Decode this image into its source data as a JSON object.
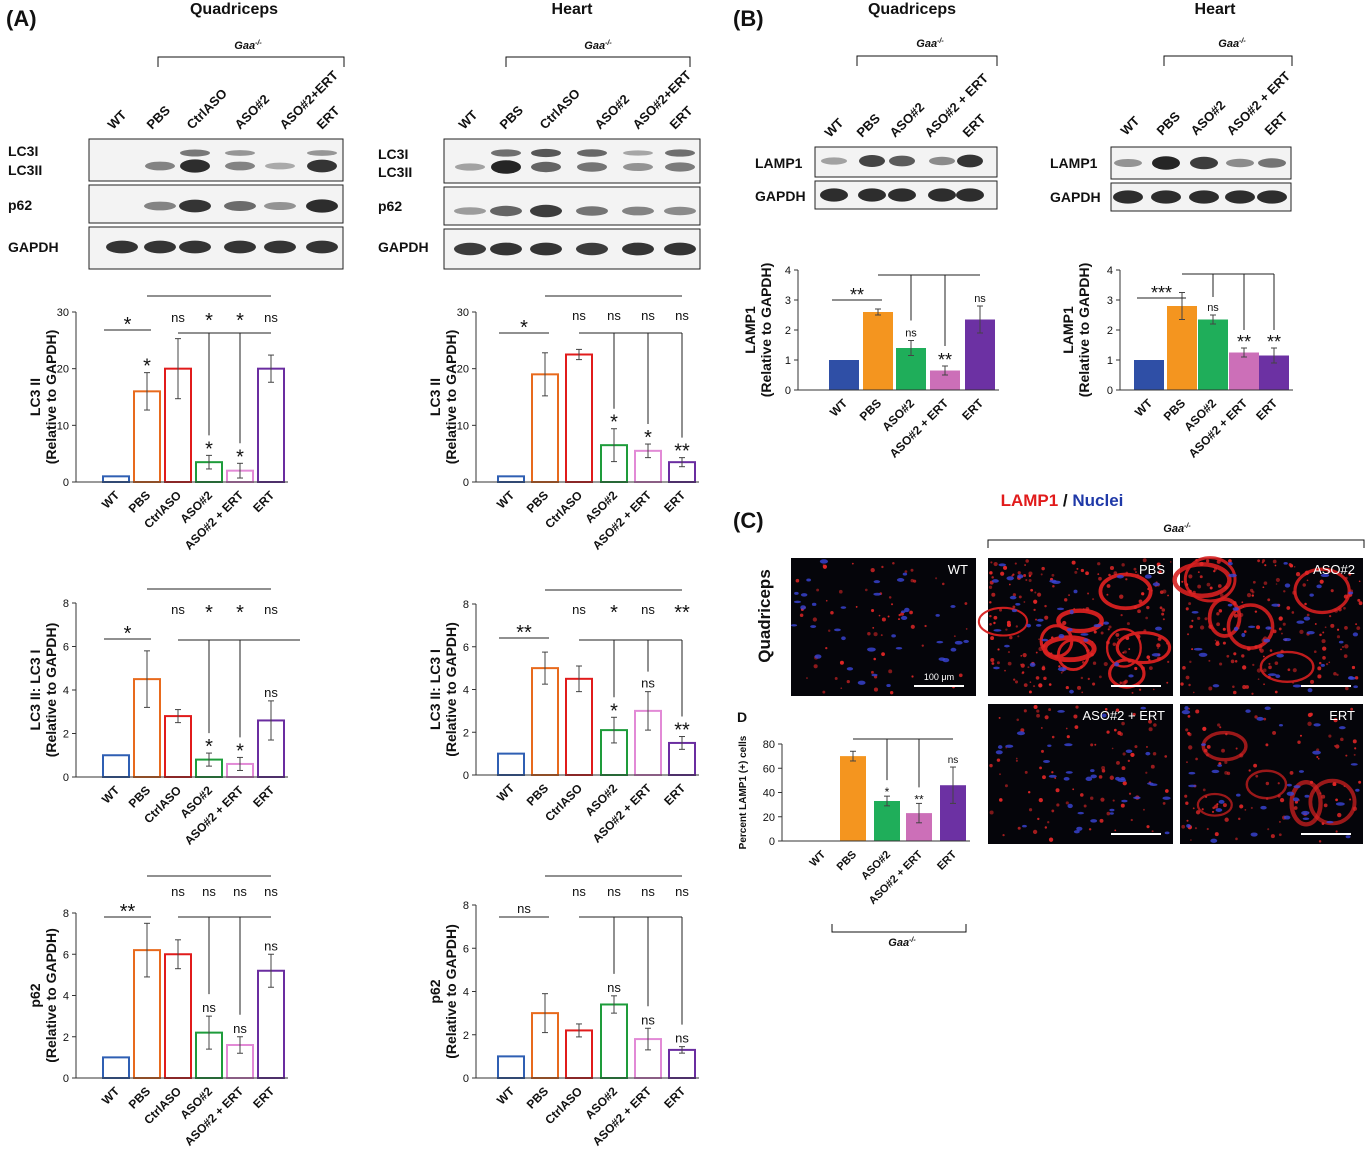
{
  "colors": {
    "wt": "#2f5fb3",
    "pbs": "#e86a1d",
    "ctrl": "#e11b1b",
    "aso": "#1e9c3b",
    "combo": "#e28ad6",
    "ert": "#6a2da0",
    "pbs_fill": "#f4951f",
    "aso_fill": "#1fae5a",
    "combo_fill": "#cc6fb8",
    "ert_fill": "#6c31a3",
    "wt_fill": "#2f4fa6",
    "lamp1_text": "#e11b1b",
    "nuclei_text": "#1f39a8"
  },
  "panels": {
    "A": "(A)",
    "B": "(B)",
    "C": "(C)",
    "D": "D",
    "quadriceps": "Quadriceps",
    "heart": "Heart",
    "gaa": "Gaa",
    "gaa_sup": "-/-",
    "lamp1": "LAMP1",
    "slash": " / ",
    "nuclei": "Nuclei"
  },
  "blots": {
    "a_lanes": [
      "WT",
      "PBS",
      "CtrlASO",
      "ASO#2",
      "ASO#2+ERT",
      "ERT"
    ],
    "b_quad_lanes": [
      "WT",
      "PBS",
      "ASO#2",
      "ASO#2 + ERT",
      "ERT"
    ],
    "b_heart_lanes": [
      "WT",
      "PBS",
      "ASO#2",
      "ASO#2 + ERT",
      "ERT"
    ],
    "labels": {
      "lc3i": "LC3I",
      "lc3ii": "LC3II",
      "p62": "p62",
      "gapdh": "GAPDH",
      "lamp1": "LAMP1"
    }
  },
  "micrographs": {
    "row_label": "Quadriceps",
    "panels": [
      "WT",
      "PBS",
      "ASO#2",
      "ASO#2 + ERT",
      "ERT"
    ],
    "scalebar": "100 μm"
  },
  "chart_data": [
    {
      "id": "a_quad_lc3",
      "type": "bar",
      "ylabel": "LC3 II",
      "ylabel2": "(Relative to GAPDH)",
      "ylim": [
        0,
        30
      ],
      "ticks": [
        0,
        10,
        20,
        30
      ],
      "categories": [
        "WT",
        "PBS",
        "CtrlASO",
        "ASO#2",
        "ASO#2 + ERT",
        "ERT"
      ],
      "values": [
        1,
        16,
        20,
        3.5,
        2,
        20
      ],
      "errors": [
        0,
        3.3,
        5.3,
        1.2,
        1.3,
        2.4
      ],
      "annotations": [
        "",
        "*",
        "",
        "*",
        "*",
        ""
      ],
      "top_labels": [
        "",
        "",
        "ns",
        "*",
        "*",
        "ns"
      ],
      "wt_pbs_label": "*"
    },
    {
      "id": "a_heart_lc3",
      "type": "bar",
      "ylabel": "LC3 II",
      "ylabel2": "(Relative to GAPDH)",
      "ylim": [
        0,
        30
      ],
      "ticks": [
        0,
        10,
        20,
        30
      ],
      "categories": [
        "WT",
        "PBS",
        "CtrlASO",
        "ASO#2",
        "ASO#2 + ERT",
        "ERT"
      ],
      "values": [
        1,
        19,
        22.5,
        6.5,
        5.5,
        3.5
      ],
      "errors": [
        0,
        3.8,
        0.9,
        2.9,
        1.2,
        0.8
      ],
      "annotations": [
        "",
        "",
        "",
        "*",
        "*",
        "**"
      ],
      "top_labels": [
        "",
        "",
        "ns",
        "ns",
        "ns",
        "ns"
      ],
      "wt_pbs_label": "*"
    },
    {
      "id": "a_quad_ratio",
      "type": "bar",
      "ylabel": "LC3 II: LC3 I",
      "ylabel2": "(Relative to GAPDH)",
      "ylim": [
        0,
        8
      ],
      "ticks": [
        0,
        2,
        4,
        6,
        8
      ],
      "categories": [
        "WT",
        "PBS",
        "CtrlASO",
        "ASO#2",
        "ASO#2 + ERT",
        "ERT"
      ],
      "values": [
        1,
        4.5,
        2.8,
        0.8,
        0.6,
        2.6
      ],
      "errors": [
        0,
        1.3,
        0.3,
        0.3,
        0.3,
        0.9
      ],
      "annotations": [
        "",
        "",
        "",
        "*",
        "*",
        "ns"
      ],
      "top_labels": [
        "",
        "",
        "ns",
        "*",
        "*",
        "ns"
      ],
      "wt_pbs_label": "*"
    },
    {
      "id": "a_heart_ratio",
      "type": "bar",
      "ylabel": "LC3 II: LC3 I",
      "ylabel2": "(Relative to GAPDH)",
      "ylim": [
        0,
        8
      ],
      "ticks": [
        0,
        2,
        4,
        6,
        8
      ],
      "categories": [
        "WT",
        "PBS",
        "CtrlASO",
        "ASO#2",
        "ASO#2 + ERT",
        "ERT"
      ],
      "values": [
        1,
        5,
        4.5,
        2.1,
        3,
        1.5
      ],
      "errors": [
        0,
        0.75,
        0.6,
        0.6,
        0.9,
        0.3
      ],
      "annotations": [
        "",
        "",
        "",
        "*",
        "ns",
        "**"
      ],
      "top_labels": [
        "",
        "",
        "ns",
        "*",
        "ns",
        "**"
      ],
      "wt_pbs_label": "**"
    },
    {
      "id": "a_quad_p62",
      "type": "bar",
      "ylabel": "p62",
      "ylabel2": "(Relative to GAPDH)",
      "ylim": [
        0,
        8
      ],
      "ticks": [
        0,
        2,
        4,
        6,
        8
      ],
      "categories": [
        "WT",
        "PBS",
        "CtrlASO",
        "ASO#2",
        "ASO#2 + ERT",
        "ERT"
      ],
      "values": [
        1,
        6.2,
        6,
        2.2,
        1.6,
        5.2
      ],
      "errors": [
        0,
        1.3,
        0.7,
        0.8,
        0.4,
        0.8
      ],
      "annotations": [
        "",
        "",
        "",
        "ns",
        "ns",
        "ns"
      ],
      "top_labels": [
        "",
        "",
        "ns",
        "ns",
        "ns",
        "ns"
      ],
      "wt_pbs_label": "**"
    },
    {
      "id": "a_heart_p62",
      "type": "bar",
      "ylabel": "p62",
      "ylabel2": "(Relative to GAPDH)",
      "ylim": [
        0,
        8
      ],
      "ticks": [
        0,
        2,
        4,
        6,
        8
      ],
      "categories": [
        "WT",
        "PBS",
        "CtrlASO",
        "ASO#2",
        "ASO#2 + ERT",
        "ERT"
      ],
      "values": [
        1,
        3,
        2.2,
        3.4,
        1.8,
        1.3
      ],
      "errors": [
        0,
        0.9,
        0.3,
        0.4,
        0.5,
        0.15
      ],
      "annotations": [
        "",
        "",
        "",
        "ns",
        "ns",
        "ns"
      ],
      "top_labels": [
        "",
        "",
        "ns",
        "ns",
        "ns",
        "ns"
      ],
      "wt_pbs_label": "ns"
    },
    {
      "id": "b_quad_lamp1",
      "type": "bar",
      "ylabel": "LAMP1",
      "ylabel2": "(Relative to GAPDH)",
      "ylim": [
        0,
        4
      ],
      "ticks": [
        0,
        1,
        2,
        3,
        4
      ],
      "categories": [
        "WT",
        "PBS",
        "ASO#2",
        "ASO#2 + ERT",
        "ERT"
      ],
      "values": [
        1,
        2.6,
        1.4,
        0.65,
        2.35
      ],
      "errors": [
        0,
        0.1,
        0.25,
        0.15,
        0.45
      ],
      "annotations": [
        "",
        "",
        "ns",
        "**",
        "ns"
      ],
      "wt_pbs_label": "**"
    },
    {
      "id": "b_heart_lamp1",
      "type": "bar",
      "ylabel": "LAMP1",
      "ylabel2": "(Relative to GAPDH)",
      "ylim": [
        0,
        4
      ],
      "ticks": [
        0,
        1,
        2,
        3,
        4
      ],
      "categories": [
        "WT",
        "PBS",
        "ASO#2",
        "ASO#2 + ERT",
        "ERT"
      ],
      "values": [
        1,
        2.8,
        2.35,
        1.25,
        1.15
      ],
      "errors": [
        0,
        0.45,
        0.15,
        0.15,
        0.25
      ],
      "annotations": [
        "",
        "",
        "ns",
        "**",
        "**"
      ],
      "wt_pbs_label": "***"
    },
    {
      "id": "d_percent",
      "type": "bar",
      "ylabel": "Percent LAMP1 (+) cells",
      "ylim": [
        0,
        80
      ],
      "ticks": [
        0,
        20,
        40,
        60,
        80
      ],
      "categories": [
        "WT",
        "PBS",
        "ASO#2",
        "ASO#2 + ERT",
        "ERT"
      ],
      "values": [
        0,
        70,
        33,
        23,
        46
      ],
      "errors": [
        0,
        4,
        4,
        8,
        15
      ],
      "annotations": [
        "",
        "",
        "*",
        "**",
        "ns"
      ]
    }
  ]
}
